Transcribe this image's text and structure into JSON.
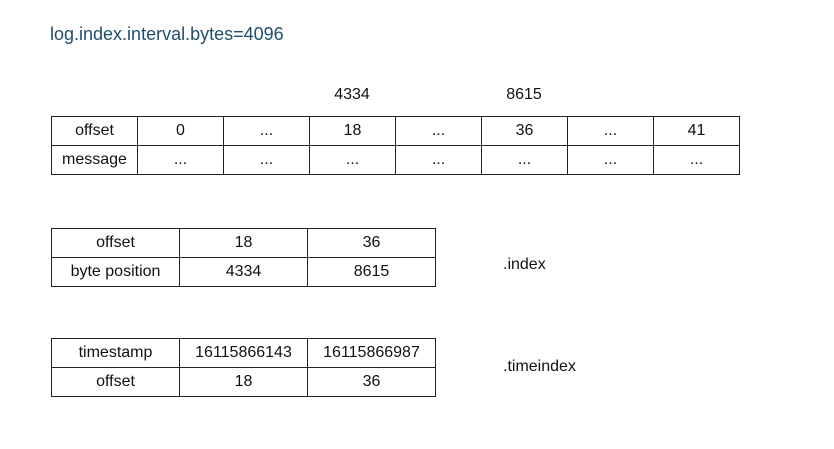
{
  "title": "log.index.interval.bytes=4096",
  "markers": [
    "4334",
    "8615"
  ],
  "log_table": {
    "rows": [
      [
        "offset",
        "0",
        "...",
        "18",
        "...",
        "36",
        "...",
        "41"
      ],
      [
        "message",
        "...",
        "...",
        "...",
        "...",
        "...",
        "...",
        "..."
      ]
    ]
  },
  "index_table": {
    "label": ".index",
    "rows": [
      [
        "offset",
        "18",
        "36"
      ],
      [
        "byte position",
        "4334",
        "8615"
      ]
    ]
  },
  "timeindex_table": {
    "label": ".timeindex",
    "rows": [
      [
        "timestamp",
        "16115866143",
        "16115866987"
      ],
      [
        "offset",
        "18",
        "36"
      ]
    ]
  }
}
